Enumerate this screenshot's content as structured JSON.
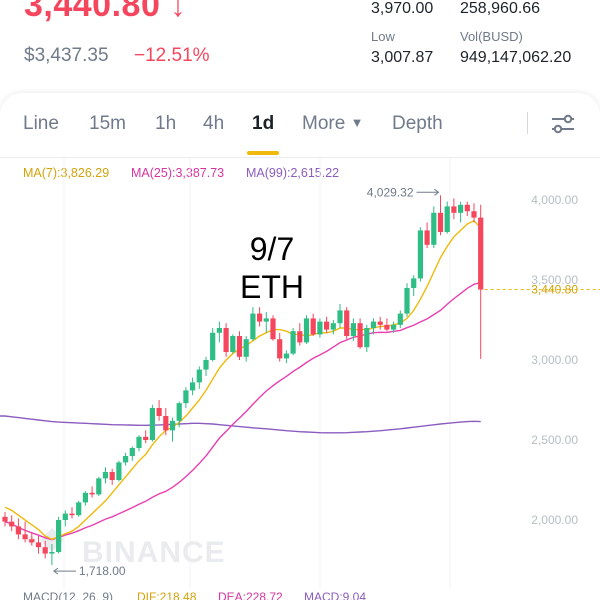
{
  "header": {
    "last_price": "3,440.80",
    "price_arrow": "↓",
    "usd_price": "$3,437.35",
    "change_pct": "−12.51%",
    "stats": {
      "high_value": "3,970.00",
      "vol_eth_value": "258,960.66",
      "low_label": "Low",
      "low_value": "3,007.87",
      "vol_busd_label": "Vol(BUSD)",
      "vol_busd_value": "949,147,062.20"
    }
  },
  "tabs": [
    {
      "label": "Line"
    },
    {
      "label": "15m"
    },
    {
      "label": "1h"
    },
    {
      "label": "4h"
    },
    {
      "label": "1d"
    },
    {
      "label": "More"
    },
    {
      "label": "Depth"
    }
  ],
  "active_tab": "1d",
  "indicators": {
    "ma7": "MA(7):3,826.29",
    "ma25": "MA(25):3,387.73",
    "ma99": "MA(99):2,615.22"
  },
  "overlay": {
    "line1": "9/7",
    "line2": "ETH"
  },
  "watermark": "BINANCE",
  "macd": {
    "label": "MACD(12, 26, 9)",
    "dif": "DIF:218.48",
    "dea": "DEA:228.72",
    "macd": "MACD:9.04"
  },
  "colors": {
    "up": "#2ebd85",
    "down": "#f6465d",
    "ma7": "#f0b90b",
    "ma25": "#e83fb2",
    "ma99": "#8b5cc0",
    "accent": "#f0b90b"
  },
  "chart_data": {
    "type": "candlestick",
    "y_ticks": [
      "4,000.00",
      "3,500.00",
      "3,000.00",
      "2,500.00",
      "2,000.00"
    ],
    "ylim": [
      1700,
      4120
    ],
    "last_price_tag": "3,440.80",
    "max_label": "4,029.32",
    "min_label": "1,718.00",
    "candles": [
      {
        "o": 2020,
        "h": 2050,
        "l": 1960,
        "c": 1990
      },
      {
        "o": 1990,
        "h": 2030,
        "l": 1930,
        "c": 1960
      },
      {
        "o": 1960,
        "h": 2010,
        "l": 1880,
        "c": 1910
      },
      {
        "o": 1910,
        "h": 1990,
        "l": 1860,
        "c": 1880
      },
      {
        "o": 1880,
        "h": 1920,
        "l": 1840,
        "c": 1860
      },
      {
        "o": 1860,
        "h": 1900,
        "l": 1790,
        "c": 1830
      },
      {
        "o": 1830,
        "h": 1870,
        "l": 1760,
        "c": 1790
      },
      {
        "o": 1790,
        "h": 1850,
        "l": 1718,
        "c": 1800
      },
      {
        "o": 1800,
        "h": 2020,
        "l": 1790,
        "c": 2000
      },
      {
        "o": 2000,
        "h": 2060,
        "l": 1960,
        "c": 2040
      },
      {
        "o": 2040,
        "h": 2080,
        "l": 2010,
        "c": 2030
      },
      {
        "o": 2030,
        "h": 2120,
        "l": 2020,
        "c": 2110
      },
      {
        "o": 2110,
        "h": 2180,
        "l": 2090,
        "c": 2170
      },
      {
        "o": 2170,
        "h": 2210,
        "l": 2140,
        "c": 2160
      },
      {
        "o": 2160,
        "h": 2270,
        "l": 2150,
        "c": 2260
      },
      {
        "o": 2260,
        "h": 2330,
        "l": 2230,
        "c": 2300
      },
      {
        "o": 2300,
        "h": 2320,
        "l": 2220,
        "c": 2250
      },
      {
        "o": 2250,
        "h": 2370,
        "l": 2240,
        "c": 2360
      },
      {
        "o": 2360,
        "h": 2420,
        "l": 2340,
        "c": 2400
      },
      {
        "o": 2400,
        "h": 2460,
        "l": 2370,
        "c": 2450
      },
      {
        "o": 2450,
        "h": 2530,
        "l": 2430,
        "c": 2520
      },
      {
        "o": 2520,
        "h": 2560,
        "l": 2480,
        "c": 2500
      },
      {
        "o": 2500,
        "h": 2720,
        "l": 2490,
        "c": 2700
      },
      {
        "o": 2700,
        "h": 2750,
        "l": 2620,
        "c": 2650
      },
      {
        "o": 2650,
        "h": 2700,
        "l": 2530,
        "c": 2560
      },
      {
        "o": 2560,
        "h": 2640,
        "l": 2490,
        "c": 2620
      },
      {
        "o": 2620,
        "h": 2740,
        "l": 2580,
        "c": 2730
      },
      {
        "o": 2730,
        "h": 2830,
        "l": 2700,
        "c": 2810
      },
      {
        "o": 2810,
        "h": 2890,
        "l": 2780,
        "c": 2860
      },
      {
        "o": 2860,
        "h": 2960,
        "l": 2820,
        "c": 2940
      },
      {
        "o": 2940,
        "h": 3020,
        "l": 2900,
        "c": 3000
      },
      {
        "o": 3000,
        "h": 3200,
        "l": 2990,
        "c": 3170
      },
      {
        "o": 3170,
        "h": 3240,
        "l": 3110,
        "c": 3200
      },
      {
        "o": 3200,
        "h": 3230,
        "l": 3020,
        "c": 3050
      },
      {
        "o": 3050,
        "h": 3160,
        "l": 3040,
        "c": 3150
      },
      {
        "o": 3150,
        "h": 3180,
        "l": 3000,
        "c": 3020
      },
      {
        "o": 3020,
        "h": 3150,
        "l": 2990,
        "c": 3130
      },
      {
        "o": 3130,
        "h": 3330,
        "l": 3120,
        "c": 3290
      },
      {
        "o": 3290,
        "h": 3330,
        "l": 3210,
        "c": 3240
      },
      {
        "o": 3240,
        "h": 3300,
        "l": 3170,
        "c": 3260
      },
      {
        "o": 3260,
        "h": 3280,
        "l": 3120,
        "c": 3130
      },
      {
        "o": 3130,
        "h": 3170,
        "l": 2990,
        "c": 3010
      },
      {
        "o": 3010,
        "h": 3060,
        "l": 2980,
        "c": 3040
      },
      {
        "o": 3040,
        "h": 3200,
        "l": 3030,
        "c": 3180
      },
      {
        "o": 3180,
        "h": 3230,
        "l": 3090,
        "c": 3110
      },
      {
        "o": 3110,
        "h": 3280,
        "l": 3100,
        "c": 3260
      },
      {
        "o": 3260,
        "h": 3290,
        "l": 3150,
        "c": 3160
      },
      {
        "o": 3160,
        "h": 3260,
        "l": 3140,
        "c": 3240
      },
      {
        "o": 3240,
        "h": 3270,
        "l": 3170,
        "c": 3190
      },
      {
        "o": 3190,
        "h": 3250,
        "l": 3160,
        "c": 3230
      },
      {
        "o": 3230,
        "h": 3350,
        "l": 3200,
        "c": 3310
      },
      {
        "o": 3310,
        "h": 3330,
        "l": 3130,
        "c": 3150
      },
      {
        "o": 3150,
        "h": 3260,
        "l": 3120,
        "c": 3230
      },
      {
        "o": 3230,
        "h": 3260,
        "l": 3070,
        "c": 3080
      },
      {
        "o": 3080,
        "h": 3220,
        "l": 3050,
        "c": 3200
      },
      {
        "o": 3200,
        "h": 3260,
        "l": 3160,
        "c": 3240
      },
      {
        "o": 3240,
        "h": 3270,
        "l": 3190,
        "c": 3220
      },
      {
        "o": 3220,
        "h": 3260,
        "l": 3180,
        "c": 3190
      },
      {
        "o": 3190,
        "h": 3240,
        "l": 3170,
        "c": 3220
      },
      {
        "o": 3220,
        "h": 3310,
        "l": 3200,
        "c": 3290
      },
      {
        "o": 3290,
        "h": 3480,
        "l": 3270,
        "c": 3450
      },
      {
        "o": 3450,
        "h": 3530,
        "l": 3400,
        "c": 3510
      },
      {
        "o": 3510,
        "h": 3830,
        "l": 3490,
        "c": 3810
      },
      {
        "o": 3810,
        "h": 3860,
        "l": 3700,
        "c": 3720
      },
      {
        "o": 3720,
        "h": 3960,
        "l": 3700,
        "c": 3920
      },
      {
        "o": 3920,
        "h": 4029,
        "l": 3780,
        "c": 3800
      },
      {
        "o": 3800,
        "h": 3990,
        "l": 3790,
        "c": 3960
      },
      {
        "o": 3960,
        "h": 4010,
        "l": 3880,
        "c": 3920
      },
      {
        "o": 3920,
        "h": 3990,
        "l": 3860,
        "c": 3970
      },
      {
        "o": 3970,
        "h": 3990,
        "l": 3900,
        "c": 3930
      },
      {
        "o": 3930,
        "h": 3980,
        "l": 3860,
        "c": 3890
      },
      {
        "o": 3890,
        "h": 3970,
        "l": 3007,
        "c": 3440
      }
    ],
    "ma7": [
      2080,
      2060,
      2030,
      2000,
      1970,
      1940,
      1900,
      1880,
      1895,
      1915,
      1930,
      1960,
      2000,
      2040,
      2080,
      2120,
      2170,
      2220,
      2270,
      2320,
      2370,
      2410,
      2470,
      2520,
      2560,
      2580,
      2610,
      2650,
      2700,
      2750,
      2810,
      2880,
      2950,
      3000,
      3040,
      3070,
      3090,
      3120,
      3150,
      3170,
      3190,
      3190,
      3180,
      3160,
      3160,
      3150,
      3160,
      3170,
      3170,
      3180,
      3200,
      3200,
      3190,
      3190,
      3190,
      3200,
      3210,
      3210,
      3220,
      3230,
      3260,
      3310,
      3380,
      3460,
      3550,
      3640,
      3710,
      3770,
      3810,
      3850,
      3870,
      3826
    ],
    "ma99": [
      2650,
      2645,
      2640,
      2635,
      2630,
      2625,
      2620,
      2615,
      2612,
      2610,
      2608,
      2606,
      2604,
      2602,
      2600,
      2598,
      2596,
      2595,
      2594,
      2593,
      2592,
      2592,
      2593,
      2594,
      2596,
      2598,
      2600,
      2602,
      2604,
      2604,
      2602,
      2600,
      2596,
      2592,
      2588,
      2584,
      2580,
      2576,
      2573,
      2570,
      2566,
      2562,
      2558,
      2555,
      2552,
      2550,
      2548,
      2546,
      2545,
      2545,
      2545,
      2546,
      2548,
      2550,
      2552,
      2555,
      2558,
      2562,
      2566,
      2570,
      2575,
      2580,
      2585,
      2590,
      2595,
      2600,
      2604,
      2608,
      2612,
      2615,
      2617,
      2615
    ]
  }
}
